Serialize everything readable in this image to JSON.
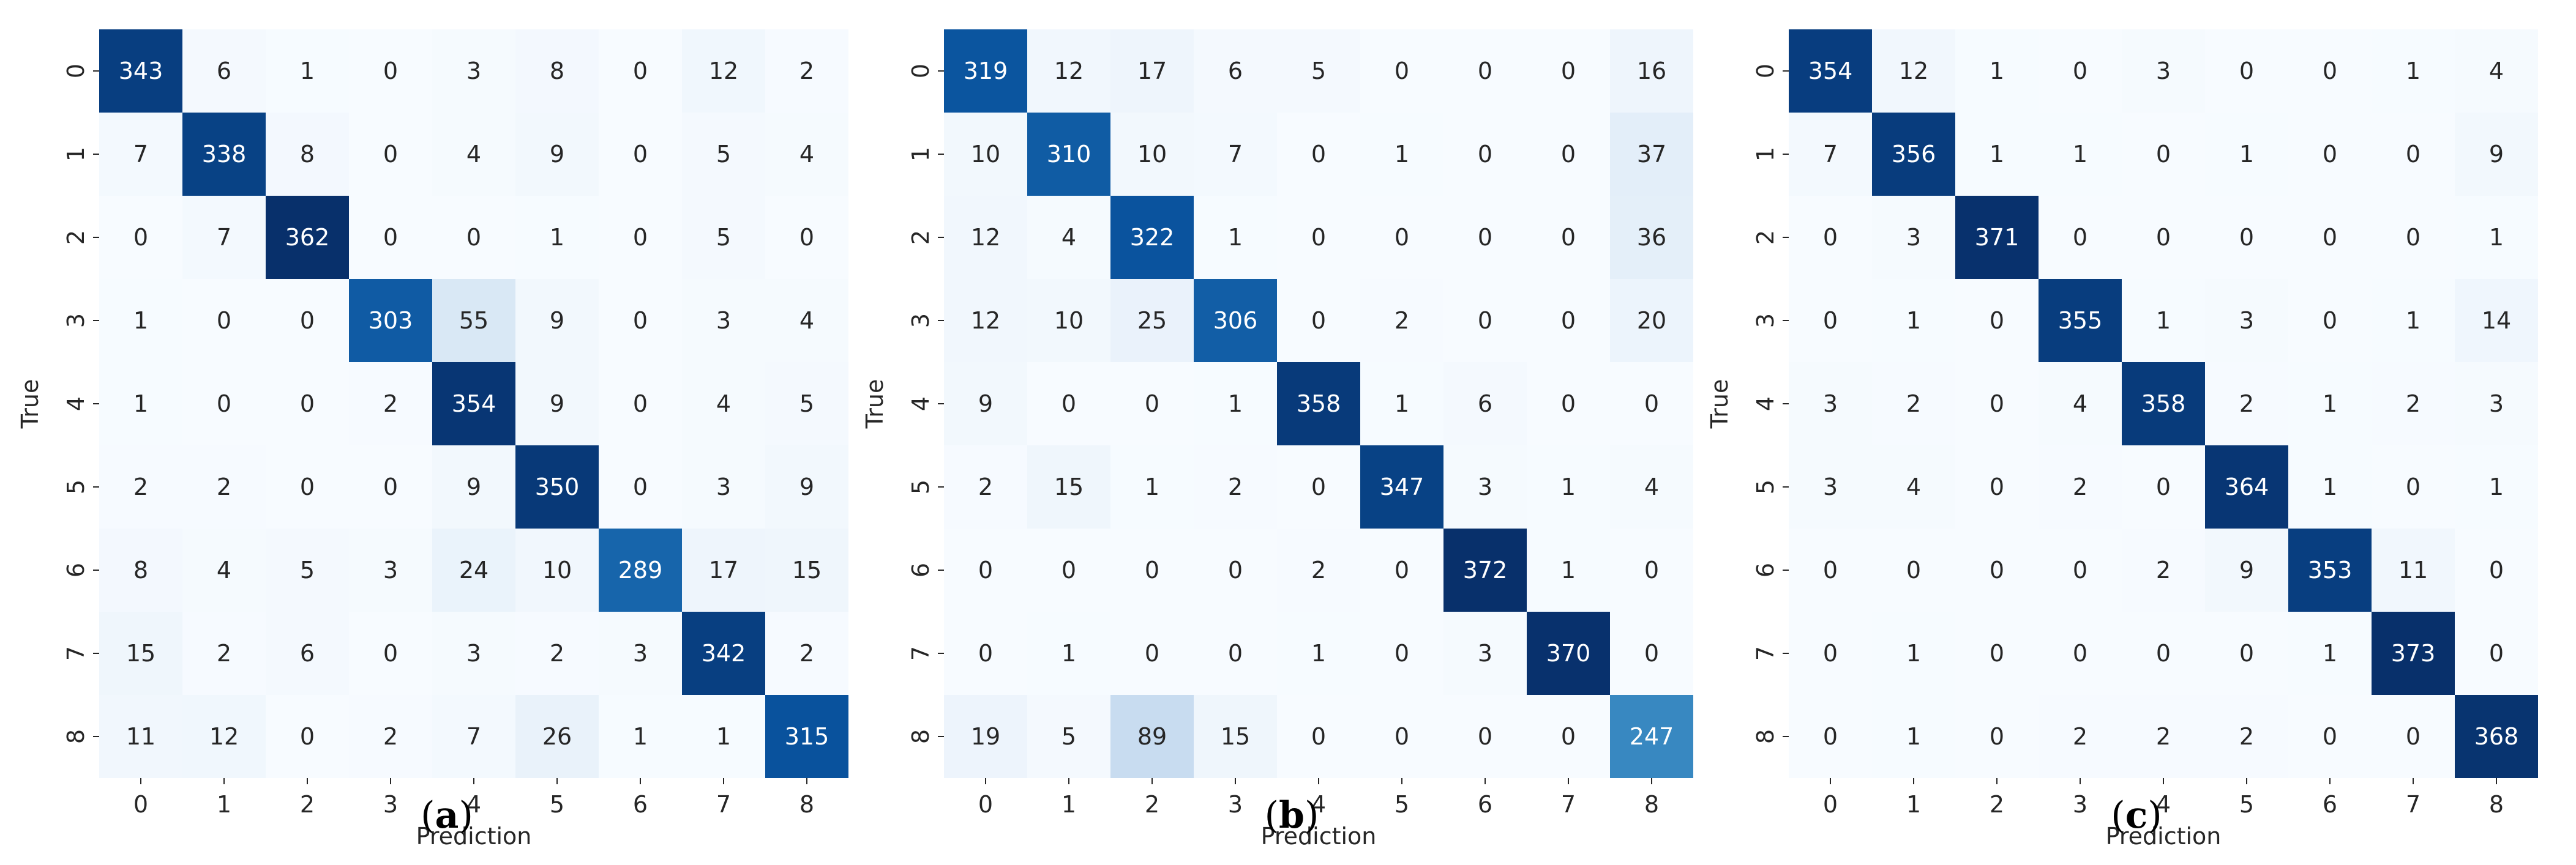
{
  "chart_data": [
    {
      "type": "heatmap",
      "caption": "a",
      "xlabel": "Prediction",
      "ylabel": "True",
      "x_categories": [
        "0",
        "1",
        "2",
        "3",
        "4",
        "5",
        "6",
        "7",
        "8"
      ],
      "y_categories": [
        "0",
        "1",
        "2",
        "3",
        "4",
        "5",
        "6",
        "7",
        "8"
      ],
      "colormap": "Blues",
      "colorbar": false,
      "matrix": [
        [
          343,
          6,
          1,
          0,
          3,
          8,
          0,
          12,
          2
        ],
        [
          7,
          338,
          8,
          0,
          4,
          9,
          0,
          5,
          4
        ],
        [
          0,
          7,
          362,
          0,
          0,
          1,
          0,
          5,
          0
        ],
        [
          1,
          0,
          0,
          303,
          55,
          9,
          0,
          3,
          4
        ],
        [
          1,
          0,
          0,
          2,
          354,
          9,
          0,
          4,
          5
        ],
        [
          2,
          2,
          0,
          0,
          9,
          350,
          0,
          3,
          9
        ],
        [
          8,
          4,
          5,
          3,
          24,
          10,
          289,
          17,
          15
        ],
        [
          15,
          2,
          6,
          0,
          3,
          2,
          3,
          342,
          2
        ],
        [
          11,
          12,
          0,
          2,
          7,
          26,
          1,
          1,
          315
        ]
      ]
    },
    {
      "type": "heatmap",
      "caption": "b",
      "xlabel": "Prediction",
      "ylabel": "True",
      "x_categories": [
        "0",
        "1",
        "2",
        "3",
        "4",
        "5",
        "6",
        "7",
        "8"
      ],
      "y_categories": [
        "0",
        "1",
        "2",
        "3",
        "4",
        "5",
        "6",
        "7",
        "8"
      ],
      "colormap": "Blues",
      "colorbar": false,
      "matrix": [
        [
          319,
          12,
          17,
          6,
          5,
          0,
          0,
          0,
          16
        ],
        [
          10,
          310,
          10,
          7,
          0,
          1,
          0,
          0,
          37
        ],
        [
          12,
          4,
          322,
          1,
          0,
          0,
          0,
          0,
          36
        ],
        [
          12,
          10,
          25,
          306,
          0,
          2,
          0,
          0,
          20
        ],
        [
          9,
          0,
          0,
          1,
          358,
          1,
          6,
          0,
          0
        ],
        [
          2,
          15,
          1,
          2,
          0,
          347,
          3,
          1,
          4
        ],
        [
          0,
          0,
          0,
          0,
          2,
          0,
          372,
          1,
          0
        ],
        [
          0,
          1,
          0,
          0,
          1,
          0,
          3,
          370,
          0
        ],
        [
          19,
          5,
          89,
          15,
          0,
          0,
          0,
          0,
          247
        ]
      ]
    },
    {
      "type": "heatmap",
      "caption": "c",
      "xlabel": "Prediction",
      "ylabel": "True",
      "x_categories": [
        "0",
        "1",
        "2",
        "3",
        "4",
        "5",
        "6",
        "7",
        "8"
      ],
      "y_categories": [
        "0",
        "1",
        "2",
        "3",
        "4",
        "5",
        "6",
        "7",
        "8"
      ],
      "colormap": "Blues",
      "colorbar": false,
      "matrix": [
        [
          354,
          12,
          1,
          0,
          3,
          0,
          0,
          1,
          4
        ],
        [
          7,
          356,
          1,
          1,
          0,
          1,
          0,
          0,
          9
        ],
        [
          0,
          3,
          371,
          0,
          0,
          0,
          0,
          0,
          1
        ],
        [
          0,
          1,
          0,
          355,
          1,
          3,
          0,
          1,
          14
        ],
        [
          3,
          2,
          0,
          4,
          358,
          2,
          1,
          2,
          3
        ],
        [
          3,
          4,
          0,
          2,
          0,
          364,
          1,
          0,
          1
        ],
        [
          0,
          0,
          0,
          0,
          2,
          9,
          353,
          11,
          0
        ],
        [
          0,
          1,
          0,
          0,
          0,
          0,
          1,
          373,
          0
        ],
        [
          0,
          1,
          0,
          2,
          2,
          2,
          0,
          0,
          368
        ]
      ]
    }
  ]
}
